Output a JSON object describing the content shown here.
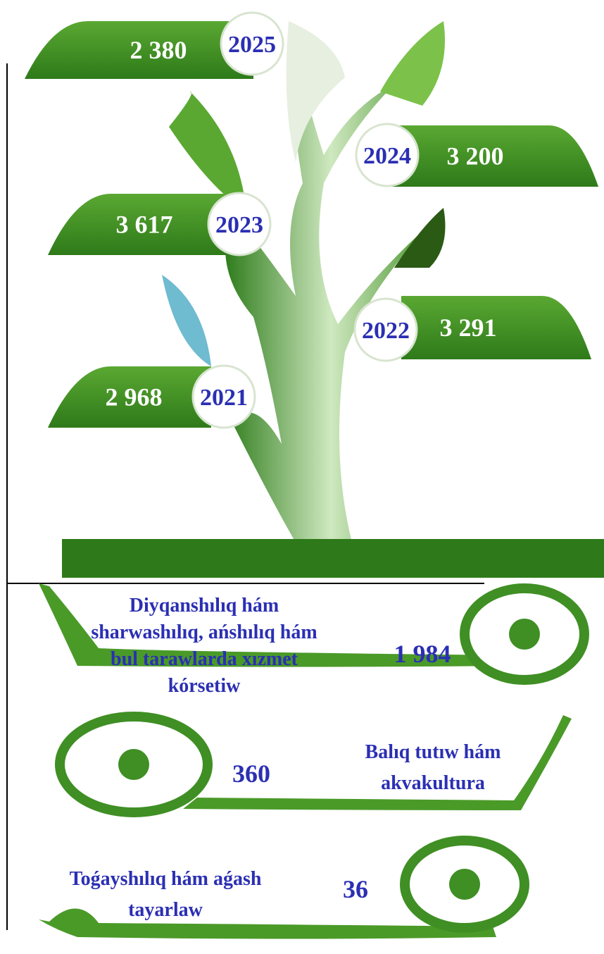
{
  "years": [
    {
      "year": "2025",
      "value": "2 380"
    },
    {
      "year": "2024",
      "value": "3 200"
    },
    {
      "year": "2023",
      "value": "3 617"
    },
    {
      "year": "2022",
      "value": "3 291"
    },
    {
      "year": "2021",
      "value": "2 968"
    }
  ],
  "sectors": [
    {
      "label": [
        "Diyqanshılıq hám",
        "sharwashılıq, ańshılıq hám",
        "bul tarawlarda xızmet",
        "kórsetiw"
      ],
      "value": "1 984"
    },
    {
      "label": [
        "Balıq tutıw hám",
        "akvakultura"
      ],
      "value": "360"
    },
    {
      "label": [
        "Toǵayshılıq hám aǵash",
        "tayarlaw"
      ],
      "value": "36"
    }
  ]
}
